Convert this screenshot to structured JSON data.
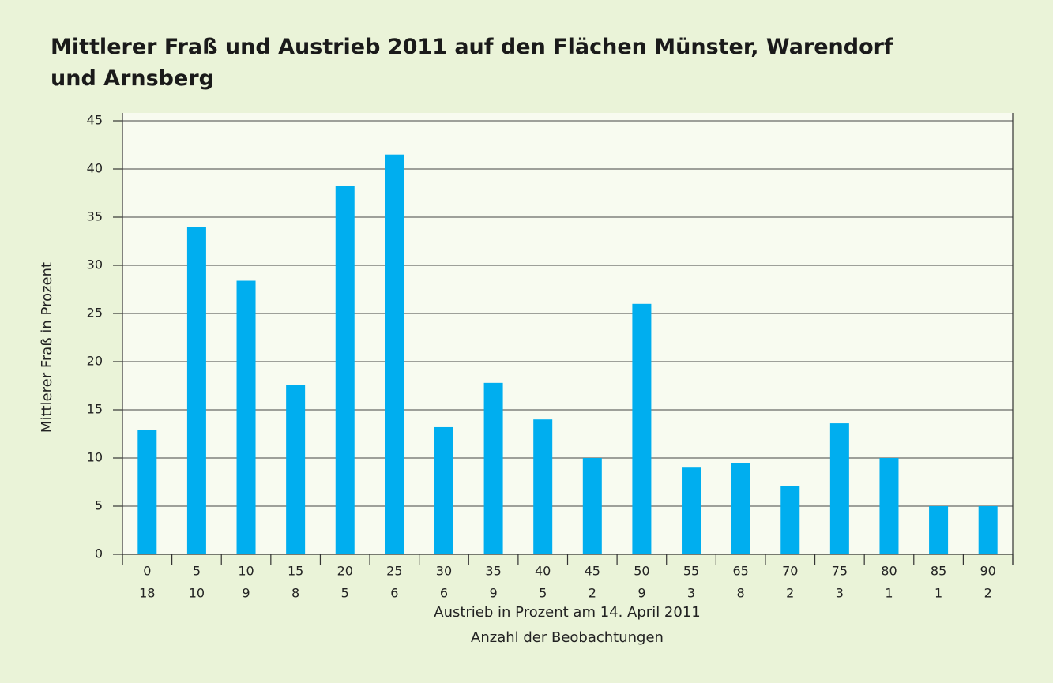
{
  "chart_data": {
    "type": "bar",
    "title": "Mittlerer Fraß und Austrieb 2011 auf den Flächen Münster, Warendorf und Arnsberg",
    "y_label": "Mittlerer Fraß in Prozent",
    "x_label": "Austrieb in Prozent am 14. April 2011",
    "x_label_2": "Anzahl der Beobachtungen",
    "categories": [
      "0",
      "5",
      "10",
      "15",
      "20",
      "25",
      "30",
      "35",
      "40",
      "45",
      "50",
      "55",
      "65",
      "70",
      "75",
      "80",
      "85",
      "90"
    ],
    "observations": [
      18,
      10,
      9,
      8,
      5,
      6,
      6,
      9,
      5,
      2,
      9,
      3,
      8,
      2,
      3,
      1,
      1,
      2
    ],
    "values": [
      12.9,
      34,
      28.4,
      17.6,
      38.2,
      41.5,
      13.2,
      17.8,
      14,
      10,
      26,
      9,
      9.5,
      7.1,
      13.6,
      10,
      5,
      5
    ],
    "color": "#00aeef",
    "ylim": [
      0,
      45
    ],
    "yticks": [
      0,
      5,
      10,
      15,
      20,
      25,
      30,
      35,
      40,
      45
    ],
    "grid": true
  }
}
